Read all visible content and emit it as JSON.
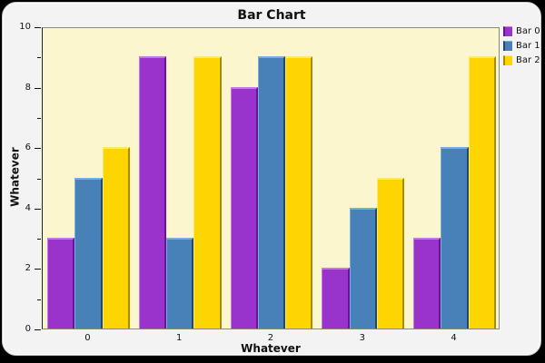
{
  "window": {
    "panel_background": "#F3F3F3",
    "outer_background": "#000000"
  },
  "chart_data": {
    "type": "bar",
    "title": "Bar Chart",
    "xlabel": "Whatever",
    "ylabel": "Whatever",
    "categories": [
      "0",
      "1",
      "2",
      "3",
      "4"
    ],
    "series": [
      {
        "name": "Bar 0",
        "color": "#9933CC",
        "color_light": "#C478E8",
        "color_dark": "#6B1299",
        "values": [
          3,
          9,
          8,
          2,
          3
        ]
      },
      {
        "name": "Bar 1",
        "color": "#4781B8",
        "color_light": "#74AEE0",
        "color_dark": "#24486B",
        "values": [
          5,
          3,
          9,
          4,
          6
        ]
      },
      {
        "name": "Bar 2",
        "color": "#FFD500",
        "color_light": "#FFE76E",
        "color_dark": "#A88C00",
        "values": [
          6,
          9,
          9,
          5,
          9
        ]
      }
    ],
    "ylim": [
      0,
      10
    ],
    "yticks_major": [
      0,
      2,
      4,
      6,
      8,
      10
    ],
    "yticks_minor": [
      1,
      3,
      5,
      7,
      9
    ],
    "plot_background": "#FBF6CE",
    "grid": false,
    "legend_position": "top-right"
  }
}
